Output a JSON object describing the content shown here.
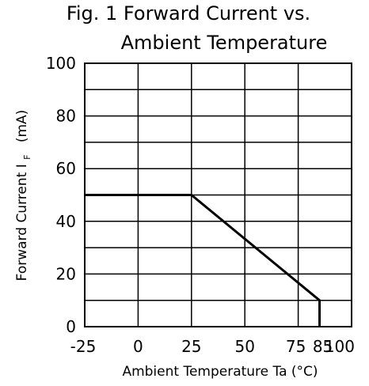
{
  "chart_data": {
    "type": "line",
    "title_lines": [
      "Fig. 1  Forward  Current  vs.",
      "Ambient  Temperature"
    ],
    "xlabel": "Ambient  Temperature  Ta  (°C)",
    "ylabel": "Forward  Current  I",
    "ylabel_subscript": "F",
    "ylabel_unit": "(mA)",
    "xlim": [
      -25,
      100
    ],
    "ylim": [
      0,
      100
    ],
    "x_ticks": [
      -25,
      0,
      25,
      50,
      75,
      85,
      100
    ],
    "x_tick_labels": [
      "-25",
      "0",
      "25",
      "50",
      "75",
      "85",
      "100"
    ],
    "x_gridlines": [
      0,
      25,
      50,
      75
    ],
    "y_ticks": [
      0,
      20,
      40,
      60,
      80,
      100
    ],
    "y_tick_labels": [
      "0",
      "20",
      "40",
      "60",
      "80",
      "100"
    ],
    "y_gridlines": [
      10,
      20,
      30,
      40,
      50,
      60,
      70,
      80,
      90
    ],
    "grid": true,
    "series": [
      {
        "x": [
          -25,
          25,
          85,
          85
        ],
        "y": [
          50,
          50,
          10,
          0
        ]
      }
    ],
    "line_color": "#000000",
    "grid_color": "#000000"
  }
}
